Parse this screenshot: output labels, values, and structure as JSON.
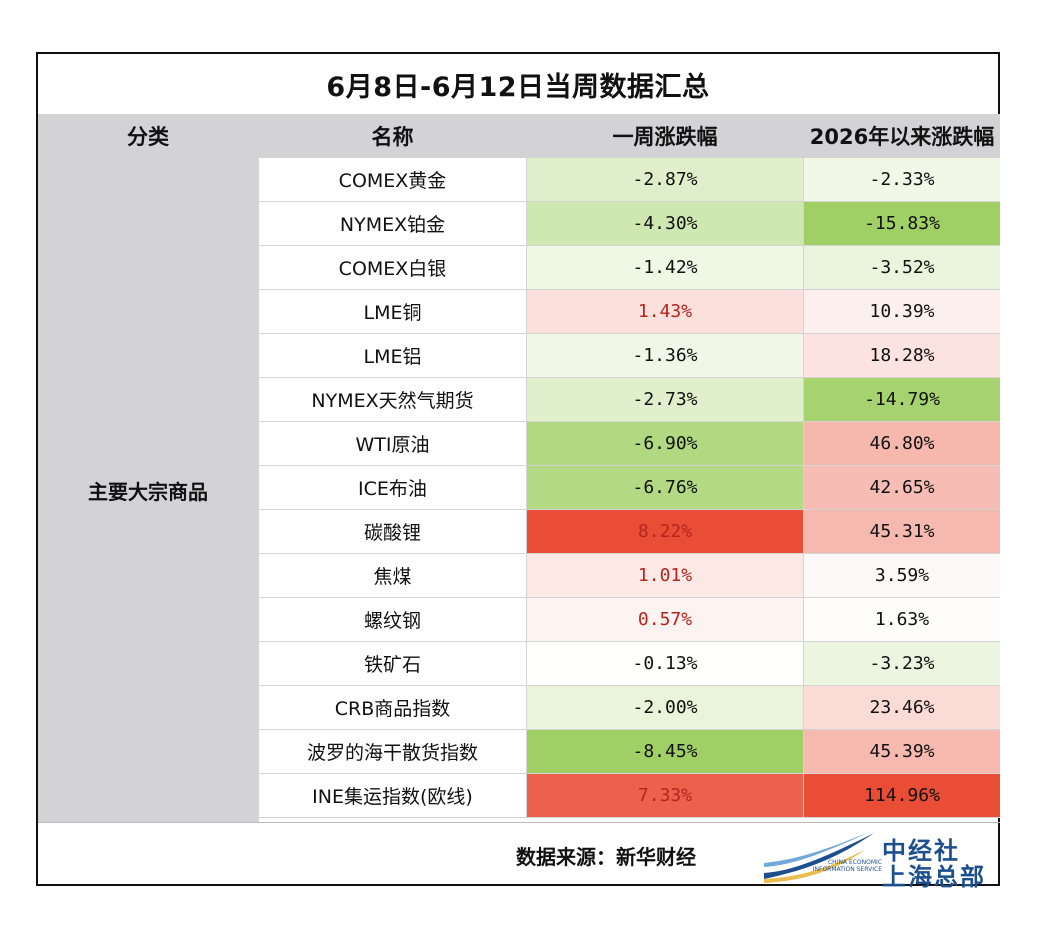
{
  "title": "6月8日-6月12日当周数据汇总",
  "headers": [
    "分类",
    "名称",
    "一周涨跌幅",
    "2026年以来涨跌幅"
  ],
  "category": "主要大宗商品",
  "rows": [
    {
      "name": "COMEX黄金",
      "week": "-2.87%",
      "ytd": "-2.33%"
    },
    {
      "name": "NYMEX铂金",
      "week": "-4.30%",
      "ytd": "-15.83%"
    },
    {
      "name": "COMEX白银",
      "week": "-1.42%",
      "ytd": "-3.52%"
    },
    {
      "name": "LME铜",
      "week": "1.43%",
      "ytd": "10.39%"
    },
    {
      "name": "LME铝",
      "week": "-1.36%",
      "ytd": "18.28%"
    },
    {
      "name": "NYMEX天然气期货",
      "week": "-2.73%",
      "ytd": "-14.79%"
    },
    {
      "name": "WTI原油",
      "week": "-6.90%",
      "ytd": "46.80%"
    },
    {
      "name": "ICE布油",
      "week": "-6.76%",
      "ytd": "42.65%"
    },
    {
      "name": "碳酸锂",
      "week": "8.22%",
      "ytd": "45.31%"
    },
    {
      "name": "焦煤",
      "week": "1.01%",
      "ytd": "3.59%"
    },
    {
      "name": "螺纹钢",
      "week": "0.57%",
      "ytd": "1.63%"
    },
    {
      "name": "铁矿石",
      "week": "-0.13%",
      "ytd": "-3.23%"
    },
    {
      "name": "CRB商品指数",
      "week": "-2.00%",
      "ytd": "23.46%"
    },
    {
      "name": "波罗的海干散货指数",
      "week": "-8.45%",
      "ytd": "45.39%"
    },
    {
      "name": "INE集运指数(欧线)",
      "week": "7.33%",
      "ytd": "114.96%"
    }
  ],
  "footer": {
    "source": "数据来源：新华财经",
    "logo_cn_line1": "中经社",
    "logo_cn_line2": "上海总部",
    "logo_en": "CHINA ECONOMIC INFORMATION SERVICE"
  },
  "colors": {
    "header_bg": "#d3d3d5",
    "positive_text": "#b5251f",
    "negative_text": "#111111",
    "green_max": "#9ecf62",
    "red_max": "#e8442a",
    "brand_blue": "#1d4f8f"
  }
}
